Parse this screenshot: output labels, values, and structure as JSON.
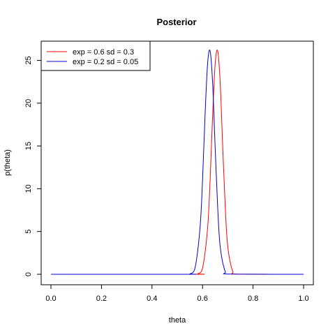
{
  "chart_data": {
    "type": "line",
    "title": "Posterior",
    "xlabel": "theta",
    "ylabel": "p(theta)",
    "xlim": [
      0.0,
      1.0
    ],
    "ylim": [
      0,
      27
    ],
    "x_ticks": [
      "0.0",
      "0.2",
      "0.4",
      "0.6",
      "0.8",
      "1.0"
    ],
    "y_ticks": [
      "0",
      "5",
      "10",
      "15",
      "20",
      "25"
    ],
    "grid": false,
    "legend_position": "top-left",
    "series": [
      {
        "name": "exp =  0.6 sd =  0.3",
        "color": "#ff0000",
        "x": [
          0.0,
          0.56,
          0.58,
          0.6,
          0.62,
          0.63,
          0.64,
          0.65,
          0.66,
          0.67,
          0.68,
          0.69,
          0.7,
          0.72,
          0.74,
          1.0
        ],
        "y": [
          0.0,
          0.0,
          0.05,
          0.7,
          5.4,
          11.0,
          18.6,
          24.6,
          26.1,
          22.3,
          14.8,
          7.8,
          3.2,
          0.3,
          0.02,
          0.0
        ]
      },
      {
        "name": "exp =  0.2 sd =  0.05",
        "color": "#0000cc",
        "x": [
          0.0,
          0.53,
          0.55,
          0.57,
          0.59,
          0.6,
          0.61,
          0.62,
          0.63,
          0.64,
          0.65,
          0.66,
          0.67,
          0.69,
          0.71,
          1.0
        ],
        "y": [
          0.0,
          0.0,
          0.05,
          0.7,
          5.4,
          11.0,
          18.6,
          24.6,
          26.1,
          22.3,
          14.8,
          7.8,
          3.2,
          0.3,
          0.02,
          0.0
        ]
      }
    ]
  }
}
